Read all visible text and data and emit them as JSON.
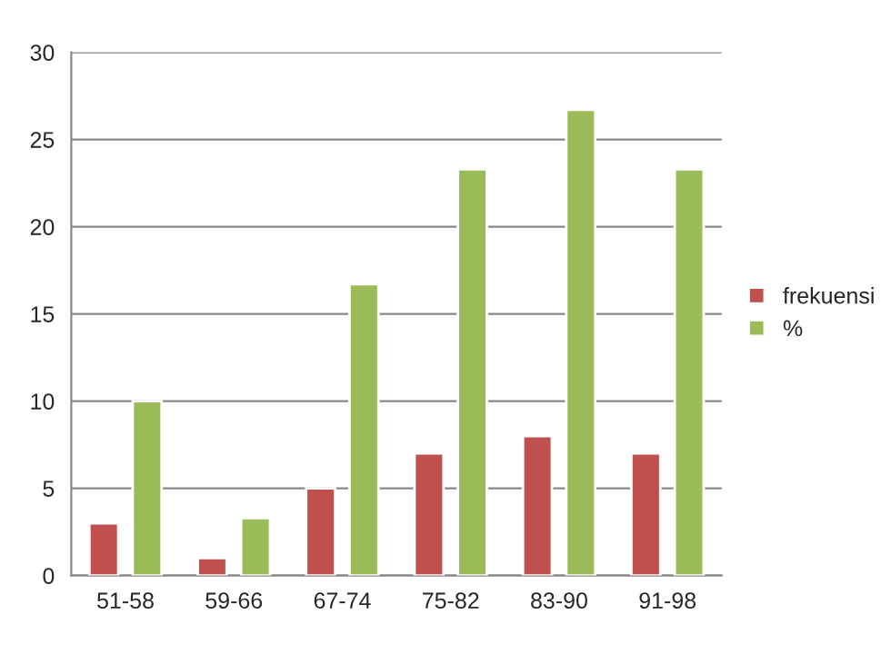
{
  "chart_data": {
    "type": "bar",
    "categories": [
      "51-58",
      "59-66",
      "67-74",
      "75-82",
      "83-90",
      "91-98"
    ],
    "series": [
      {
        "name": "frekuensi",
        "color": "#c0504d",
        "values": [
          3,
          1,
          5,
          7,
          8,
          7
        ]
      },
      {
        "name": "%",
        "color": "#9bbb59",
        "values": [
          10,
          3.3,
          16.7,
          23.3,
          26.7,
          23.3
        ]
      }
    ],
    "ylim": [
      0,
      30
    ],
    "yticks": [
      0,
      5,
      10,
      15,
      20,
      25,
      30
    ],
    "grid": "y",
    "legend": "right"
  }
}
